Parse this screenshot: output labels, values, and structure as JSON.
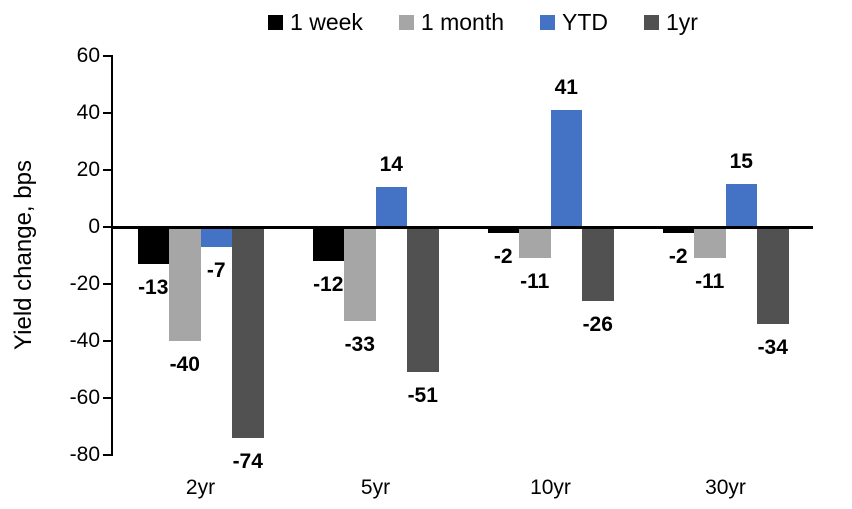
{
  "chart_data": {
    "type": "bar",
    "title": "",
    "xlabel": "",
    "ylabel": "Yield change, bps",
    "categories": [
      "2yr",
      "5yr",
      "10yr",
      "30yr"
    ],
    "series": [
      {
        "name": "1 week",
        "color": "#000000",
        "values": [
          -13,
          -12,
          -2,
          -2
        ]
      },
      {
        "name": "1 month",
        "color": "#A6A6A6",
        "values": [
          -40,
          -33,
          -11,
          -11
        ]
      },
      {
        "name": "YTD",
        "color": "#4472C4",
        "values": [
          -7,
          14,
          41,
          15
        ]
      },
      {
        "name": "1yr",
        "color": "#515151",
        "values": [
          -74,
          -51,
          -26,
          -34
        ]
      }
    ],
    "yticks": [
      60,
      40,
      20,
      0,
      -20,
      -40,
      -60,
      -80
    ],
    "ylim": [
      -80,
      60
    ],
    "legend_position": "top",
    "grid": false,
    "data_labels": true,
    "axis_color": "#000000",
    "background": "#FFFFFF",
    "data_label_color": "#000000"
  }
}
